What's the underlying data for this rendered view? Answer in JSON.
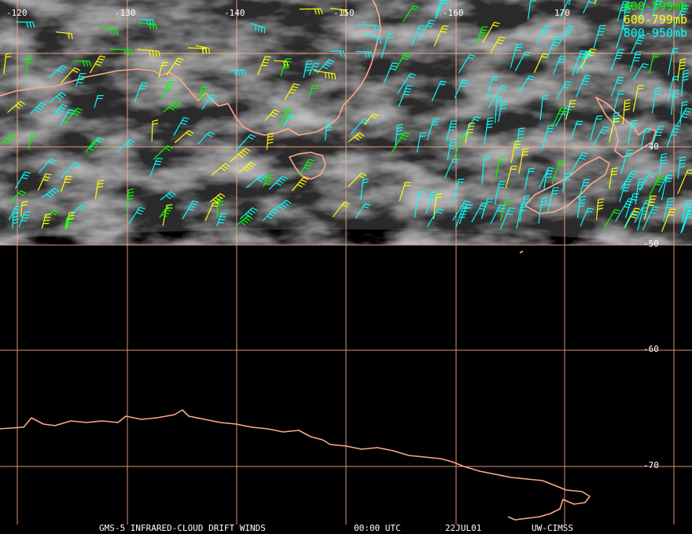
{
  "map": {
    "longitude_labels": [
      "-120",
      "-130",
      "-140",
      "-150",
      "-160",
      "170"
    ],
    "latitude_labels": [
      "-40",
      "-50",
      "-60",
      "-70"
    ],
    "legend": [
      {
        "text": "400-599mb",
        "color": "#00ff00"
      },
      {
        "text": "600-799mb",
        "color": "#ffff00"
      },
      {
        "text": "800-950mb",
        "color": "#00ffff"
      }
    ],
    "footer": {
      "product": "GMS-5 INFRARED-CLOUD DRIFT WINDS",
      "time": "00:00 UTC",
      "date": "22JUL01",
      "source": "UW-CIMSS"
    },
    "colors": {
      "coastline": "#ffa98a",
      "grid": "#ffb090",
      "wind_low": "#00ffff",
      "wind_mid": "#ffff00",
      "wind_high": "#00ff00"
    }
  }
}
